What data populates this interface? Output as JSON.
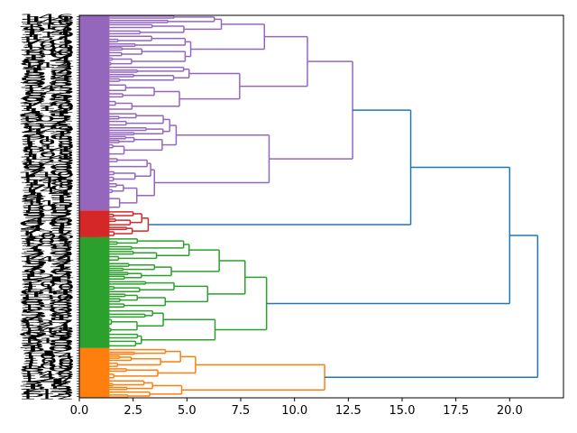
{
  "chart_data": {
    "type": "dendrogram",
    "orientation": "left",
    "title": "",
    "xlabel": "",
    "ylabel": "",
    "xlim": [
      0,
      22.5
    ],
    "x_ticks": [
      0.0,
      2.5,
      5.0,
      7.5,
      10.0,
      12.5,
      15.0,
      17.5,
      20.0
    ],
    "x_tick_labels": [
      "0.0",
      "2.5",
      "5.0",
      "7.5",
      "10.0",
      "12.5",
      "15.0",
      "17.5",
      "20.0"
    ],
    "leaf_count_estimate": 150,
    "top_merges": [
      {
        "height": 21.3,
        "joins": [
          "orange cluster",
          "green+red+purple"
        ]
      },
      {
        "height": 20.0,
        "joins": [
          "green cluster",
          "red+purple"
        ]
      },
      {
        "height": 15.4,
        "joins": [
          "red cluster",
          "purple cluster"
        ]
      }
    ],
    "clusters": [
      {
        "name": "purple",
        "color": "#9467bd",
        "merge_height": 12.7,
        "leaf_share": 0.51,
        "sub_merges": [
          10.6,
          8.6,
          6.6,
          6.5,
          5.5,
          5.1,
          5.0,
          4.5,
          4.2,
          3.9,
          3.5,
          3.3
        ]
      },
      {
        "name": "red",
        "color": "#d62728",
        "merge_height": 3.2,
        "leaf_share": 0.07,
        "sub_merges": [
          2.9,
          2.5,
          2.2
        ]
      },
      {
        "name": "green",
        "color": "#2ca02c",
        "merge_height": 8.7,
        "leaf_share": 0.29,
        "sub_merges": [
          7.7,
          6.5,
          5.1,
          5.0,
          4.4,
          3.9,
          3.4,
          3.3,
          2.7
        ]
      },
      {
        "name": "orange",
        "color": "#ff7f0e",
        "merge_height": 11.4,
        "leaf_share": 0.13,
        "sub_merges": [
          5.4,
          4.7,
          4.0,
          3.4,
          3.0
        ]
      }
    ],
    "link_color_above_threshold": "#1f77b4"
  }
}
